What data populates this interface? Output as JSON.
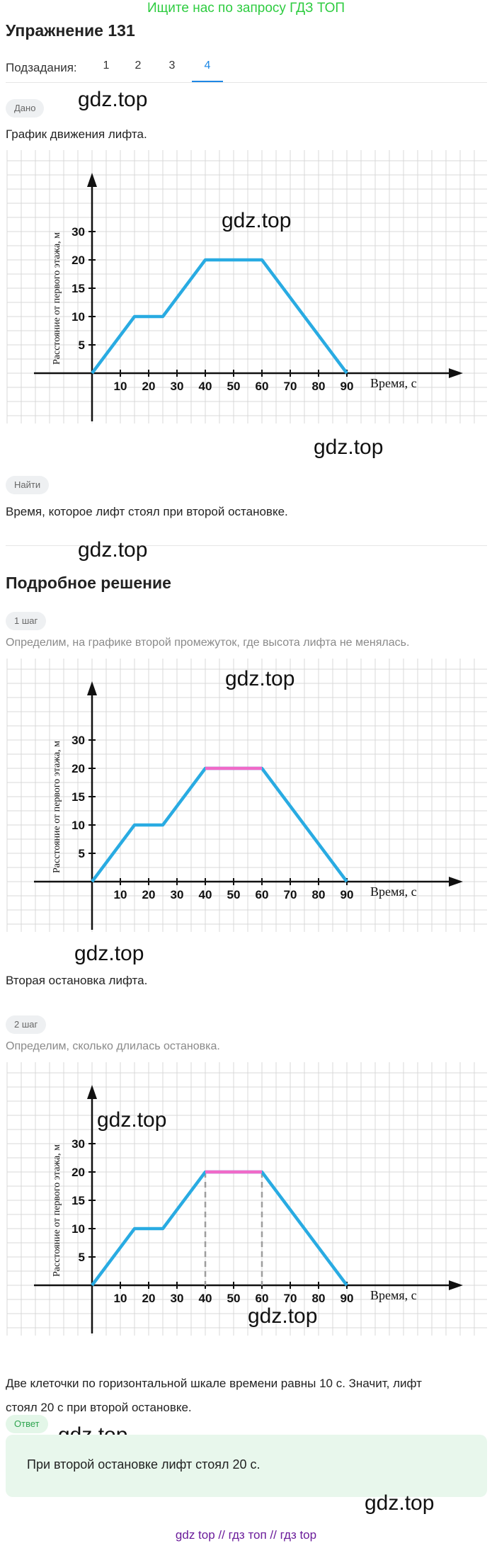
{
  "banner": "Ищите нас по запросу ГДЗ ТОП",
  "title": "Упражнение 131",
  "subtasks": {
    "label": "Подзадания:",
    "items": [
      "1",
      "2",
      "3",
      "4"
    ],
    "active": "4"
  },
  "watermark": "gdz.top",
  "given": {
    "chip": "Дано",
    "text": "График движения лифта."
  },
  "find": {
    "chip": "Найти",
    "text": "Время, которое лифт стоял при второй остановке."
  },
  "solution_title": "Подробное решение",
  "step1": {
    "chip": "1 шаг",
    "text": "Определим, на графике второй промежуток, где высота лифта не менялась.",
    "after": "Вторая остановка лифта."
  },
  "step2": {
    "chip": "2 шаг",
    "text": "Определим, сколько длилась остановка.",
    "after_line1": "Две клеточки по горизонтальной шкале времени равны 10 с. Значит, лифт",
    "after_line2": "стоял 20 с при второй остановке."
  },
  "answer": {
    "chip": "Ответ",
    "text": "При второй остановке лифт стоял 20 с."
  },
  "footer": "gdz top  //  гдз топ  //  гдз top",
  "chart_labels": {
    "ylabel": "Расстояние от первого этажа, м",
    "xlabel": "Время, с"
  },
  "colors": {
    "line": "#29abe2",
    "highlight": "#f06ac8",
    "grid": "#d9d9d9",
    "banner": "#2ecc40",
    "accent": "#1e88e5"
  },
  "chart_data": [
    {
      "type": "line",
      "x": [
        0,
        15,
        25,
        40,
        60,
        90
      ],
      "y": [
        0,
        10,
        10,
        20,
        20,
        0
      ],
      "xticks": [
        10,
        20,
        30,
        40,
        50,
        60,
        70,
        80,
        90
      ],
      "yticks": [
        5,
        10,
        15,
        20,
        30
      ],
      "xlim": [
        0,
        100
      ],
      "ylim": [
        0,
        30
      ]
    },
    {
      "type": "line",
      "x": [
        0,
        15,
        25,
        40,
        60,
        90
      ],
      "y": [
        0,
        10,
        10,
        20,
        20,
        0
      ],
      "highlight": {
        "x": [
          40,
          60
        ],
        "y": [
          20,
          20
        ]
      },
      "xticks": [
        10,
        20,
        30,
        40,
        50,
        60,
        70,
        80,
        90
      ],
      "yticks": [
        5,
        10,
        15,
        20,
        30
      ],
      "xlim": [
        0,
        100
      ],
      "ylim": [
        0,
        30
      ]
    },
    {
      "type": "line",
      "x": [
        0,
        15,
        25,
        40,
        60,
        90
      ],
      "y": [
        0,
        10,
        10,
        20,
        20,
        0
      ],
      "highlight": {
        "x": [
          40,
          60
        ],
        "y": [
          20,
          20
        ]
      },
      "dashed_x": [
        40,
        60
      ],
      "xticks": [
        10,
        20,
        30,
        40,
        50,
        60,
        70,
        80,
        90
      ],
      "yticks": [
        5,
        10,
        15,
        20,
        30
      ],
      "xlim": [
        0,
        100
      ],
      "ylim": [
        0,
        30
      ]
    }
  ]
}
